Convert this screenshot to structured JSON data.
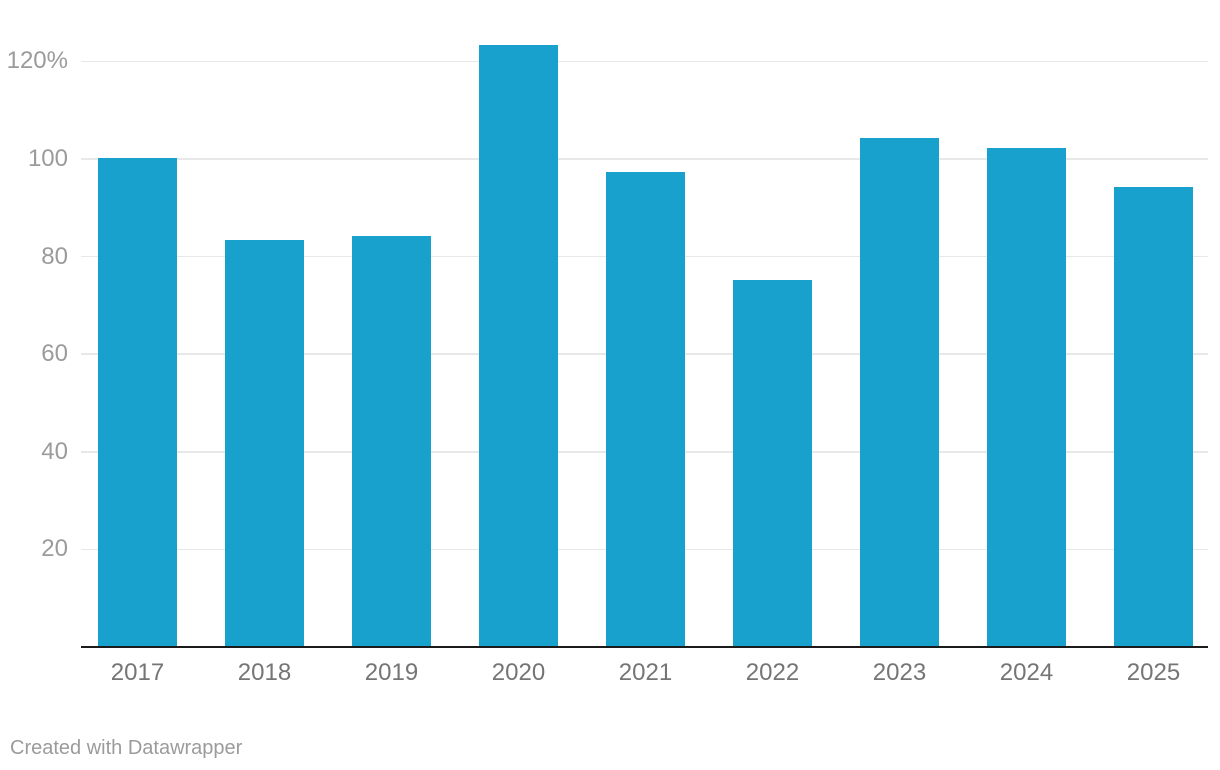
{
  "chart_data": {
    "type": "bar",
    "categories": [
      "2017",
      "2018",
      "2019",
      "2020",
      "2021",
      "2022",
      "2023",
      "2024",
      "2025"
    ],
    "values": [
      100,
      83,
      84,
      123,
      97,
      75,
      104,
      102,
      94
    ],
    "title": "",
    "xlabel": "",
    "ylabel": "",
    "ylim": [
      0,
      126
    ],
    "yticks": [
      20,
      40,
      60,
      80,
      100,
      120
    ],
    "ytick_labels": [
      "20",
      "40",
      "60",
      "80",
      "100",
      "120%"
    ],
    "grid": true,
    "legend": "none",
    "bar_color": "#18a1cd"
  },
  "colors": {
    "background": "#ffffff",
    "bar": "#18a1cd",
    "gridline": "#e8e8e8",
    "baseline": "#1b1b1b",
    "y_label": "#9b9b9b",
    "x_label": "#757575",
    "footer": "#9b9b9b"
  },
  "footer": {
    "attribution": "Created with Datawrapper"
  }
}
